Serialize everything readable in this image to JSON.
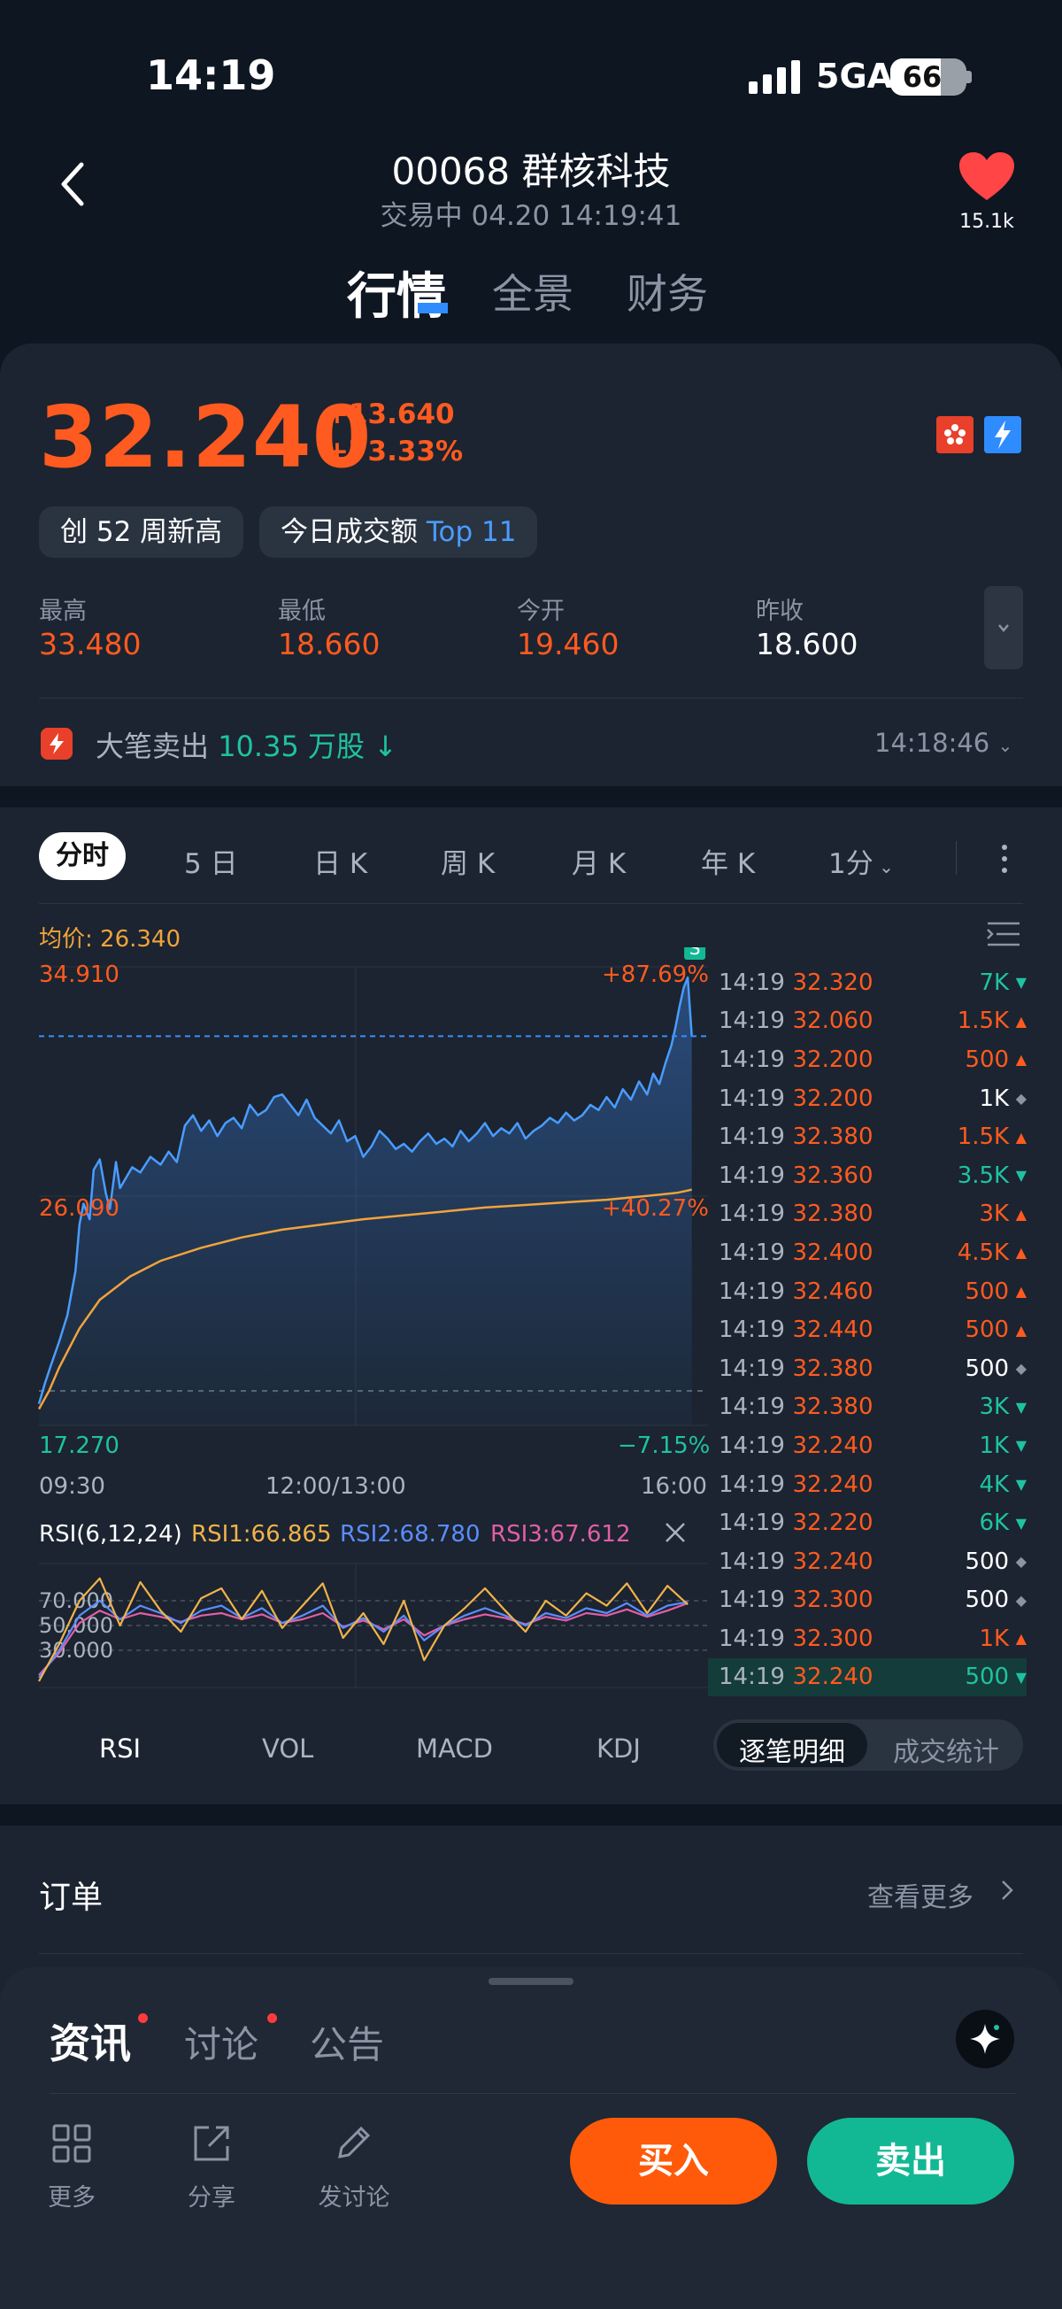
{
  "status_bar": {
    "time": "14:19",
    "network": "5GA",
    "battery": "66",
    "battery_level_pct": 66
  },
  "header": {
    "title": "00068 群核科技",
    "status": "交易中 04.20 14:19:41",
    "fav_count": "15.1k"
  },
  "tabs": [
    {
      "label": "行情"
    },
    {
      "label": "全景"
    },
    {
      "label": "财务"
    }
  ],
  "quote": {
    "price": "32.240",
    "change": "+13.640",
    "change_pct": "+73.33%",
    "tags": {
      "new_high": "创 52 周新高",
      "turnover_prefix": "今日成交额 ",
      "turnover_rank": "Top 11"
    },
    "stats": [
      {
        "label": "最高",
        "value": "33.480"
      },
      {
        "label": "最低",
        "value": "18.660"
      },
      {
        "label": "今开",
        "value": "19.460"
      },
      {
        "label": "昨收",
        "value": "18.600"
      }
    ],
    "big_trade": {
      "prefix": "大笔卖出 ",
      "amount": "10.35 万股 ↓",
      "time": "14:18:46"
    }
  },
  "chart_tabs": [
    "分时",
    "5 日",
    "日 K",
    "周 K",
    "月 K",
    "年 K",
    "1分"
  ],
  "chart": {
    "avg_price_label": "均价: 26.340",
    "signal_marker": "S",
    "y_labels": {
      "high": "34.910",
      "mid": "26.090",
      "low": "17.270"
    },
    "pct_labels": {
      "high": "+87.69%",
      "mid": "+40.27%",
      "low": "−7.15%"
    },
    "x_labels": [
      "09:30",
      "12:00/13:00",
      "16:00"
    ]
  },
  "chart_data": {
    "type": "line",
    "ylim": [
      17.27,
      34.91
    ],
    "x_range": [
      0,
      330
    ],
    "series": [
      {
        "name": "价格",
        "color": "#4a9cff",
        "x": [
          0,
          3,
          6,
          10,
          14,
          18,
          20,
          22,
          25,
          27,
          30,
          33,
          35,
          38,
          40,
          43,
          46,
          50,
          55,
          60,
          64,
          68,
          72,
          76,
          80,
          84,
          88,
          92,
          96,
          100,
          104,
          108,
          112,
          116,
          120,
          124,
          128,
          132,
          136,
          140,
          144,
          148,
          152,
          156,
          160,
          164,
          168,
          172,
          176,
          180,
          184,
          188,
          192,
          196,
          200,
          204,
          208,
          212,
          216,
          220,
          224,
          228,
          232,
          236,
          240,
          244,
          248,
          252,
          256,
          260,
          264,
          268,
          272,
          276,
          280,
          284,
          288,
          292,
          296,
          300,
          303,
          306,
          309,
          312,
          314,
          316,
          318,
          320,
          322
        ],
        "y": [
          18.1,
          18.9,
          19.6,
          20.5,
          21.5,
          23.2,
          25.0,
          25.8,
          25.2,
          27.1,
          27.5,
          26.2,
          25.6,
          27.4,
          26.4,
          26.8,
          27.2,
          27.0,
          27.6,
          27.3,
          27.8,
          27.4,
          28.8,
          29.2,
          28.6,
          29.0,
          28.4,
          28.9,
          29.1,
          28.7,
          29.6,
          29.2,
          29.4,
          29.9,
          30.0,
          29.6,
          29.2,
          29.8,
          29.1,
          28.8,
          28.5,
          29.0,
          28.2,
          28.4,
          27.6,
          28.0,
          28.6,
          28.3,
          27.9,
          28.1,
          27.8,
          28.2,
          28.5,
          28.1,
          28.3,
          28.0,
          28.6,
          28.2,
          28.5,
          28.9,
          28.4,
          28.7,
          28.5,
          28.9,
          28.3,
          28.6,
          28.8,
          29.1,
          28.9,
          29.3,
          29.0,
          29.2,
          29.6,
          29.4,
          29.9,
          29.5,
          30.2,
          29.8,
          30.5,
          30.0,
          30.8,
          30.4,
          31.2,
          31.9,
          32.6,
          33.4,
          34.1,
          34.5,
          32.24
        ]
      },
      {
        "name": "均价",
        "color": "#f2a33c",
        "x": [
          0,
          5,
          10,
          20,
          30,
          45,
          60,
          80,
          100,
          120,
          140,
          160,
          180,
          200,
          220,
          240,
          260,
          280,
          300,
          315,
          322
        ],
        "y": [
          17.9,
          18.6,
          19.5,
          21.0,
          22.1,
          23.0,
          23.6,
          24.1,
          24.5,
          24.8,
          25.0,
          25.2,
          25.35,
          25.5,
          25.65,
          25.75,
          25.85,
          25.95,
          26.1,
          26.22,
          26.34
        ]
      }
    ],
    "reference_line": 18.6
  },
  "ticks": [
    {
      "time": "14:19",
      "price": "32.320",
      "vol": "7K",
      "price_color": "#ff5a1f",
      "vol_color": "#1fc2a0",
      "mark": "▼",
      "mark_color": "#1fc2a0"
    },
    {
      "time": "14:19",
      "price": "32.060",
      "vol": "1.5K",
      "price_color": "#ff5a1f",
      "vol_color": "#ff5a1f",
      "mark": "▲",
      "mark_color": "#ff5a1f"
    },
    {
      "time": "14:19",
      "price": "32.200",
      "vol": "500",
      "price_color": "#ff5a1f",
      "vol_color": "#ff5a1f",
      "mark": "▲",
      "mark_color": "#ff5a1f"
    },
    {
      "time": "14:19",
      "price": "32.200",
      "vol": "1K",
      "price_color": "#ff5a1f",
      "vol_color": "#ffffff",
      "mark": "◆",
      "mark_color": "#8a94a3"
    },
    {
      "time": "14:19",
      "price": "32.380",
      "vol": "1.5K",
      "price_color": "#ff5a1f",
      "vol_color": "#ff5a1f",
      "mark": "▲",
      "mark_color": "#ff5a1f"
    },
    {
      "time": "14:19",
      "price": "32.360",
      "vol": "3.5K",
      "price_color": "#ff5a1f",
      "vol_color": "#1fc2a0",
      "mark": "▼",
      "mark_color": "#1fc2a0"
    },
    {
      "time": "14:19",
      "price": "32.380",
      "vol": "3K",
      "price_color": "#ff5a1f",
      "vol_color": "#ff5a1f",
      "mark": "▲",
      "mark_color": "#ff5a1f"
    },
    {
      "time": "14:19",
      "price": "32.400",
      "vol": "4.5K",
      "price_color": "#ff5a1f",
      "vol_color": "#ff5a1f",
      "mark": "▲",
      "mark_color": "#ff5a1f"
    },
    {
      "time": "14:19",
      "price": "32.460",
      "vol": "500",
      "price_color": "#ff5a1f",
      "vol_color": "#ff5a1f",
      "mark": "▲",
      "mark_color": "#ff5a1f"
    },
    {
      "time": "14:19",
      "price": "32.440",
      "vol": "500",
      "price_color": "#ff5a1f",
      "vol_color": "#ff5a1f",
      "mark": "▲",
      "mark_color": "#ff5a1f"
    },
    {
      "time": "14:19",
      "price": "32.380",
      "vol": "500",
      "price_color": "#ff5a1f",
      "vol_color": "#ffffff",
      "mark": "◆",
      "mark_color": "#8a94a3"
    },
    {
      "time": "14:19",
      "price": "32.380",
      "vol": "3K",
      "price_color": "#ff5a1f",
      "vol_color": "#1fc2a0",
      "mark": "▼",
      "mark_color": "#1fc2a0"
    },
    {
      "time": "14:19",
      "price": "32.240",
      "vol": "1K",
      "price_color": "#ff5a1f",
      "vol_color": "#1fc2a0",
      "mark": "▼",
      "mark_color": "#1fc2a0"
    },
    {
      "time": "14:19",
      "price": "32.240",
      "vol": "4K",
      "price_color": "#ff5a1f",
      "vol_color": "#1fc2a0",
      "mark": "▼",
      "mark_color": "#1fc2a0"
    },
    {
      "time": "14:19",
      "price": "32.220",
      "vol": "6K",
      "price_color": "#ff5a1f",
      "vol_color": "#1fc2a0",
      "mark": "▼",
      "mark_color": "#1fc2a0"
    },
    {
      "time": "14:19",
      "price": "32.240",
      "vol": "500",
      "price_color": "#ff5a1f",
      "vol_color": "#ffffff",
      "mark": "◆",
      "mark_color": "#8a94a3"
    },
    {
      "time": "14:19",
      "price": "32.300",
      "vol": "500",
      "price_color": "#ff5a1f",
      "vol_color": "#ffffff",
      "mark": "◆",
      "mark_color": "#8a94a3"
    },
    {
      "time": "14:19",
      "price": "32.300",
      "vol": "1K",
      "price_color": "#ff5a1f",
      "vol_color": "#ff5a1f",
      "mark": "▲",
      "mark_color": "#ff5a1f"
    },
    {
      "time": "14:19",
      "price": "32.240",
      "vol": "500",
      "price_color": "#ff5a1f",
      "vol_color": "#1fc2a0",
      "mark": "▼",
      "mark_color": "#1fc2a0",
      "highlight": true
    }
  ],
  "rsi": {
    "title": "RSI(6,12,24)",
    "rsi1": "RSI1:66.865",
    "rsi2": "RSI2:68.780",
    "rsi3": "RSI3:67.612",
    "levels": [
      "70.000",
      "50.000",
      "30.000"
    ]
  },
  "rsi_data": {
    "ylim": [
      0,
      100
    ],
    "x": [
      0,
      10,
      20,
      30,
      40,
      50,
      60,
      70,
      80,
      90,
      100,
      110,
      120,
      130,
      140,
      150,
      160,
      170,
      180,
      190,
      200,
      210,
      220,
      230,
      240,
      250,
      260,
      270,
      280,
      290,
      300,
      310,
      320
    ],
    "rsi1": [
      5,
      35,
      70,
      88,
      50,
      85,
      62,
      45,
      72,
      80,
      55,
      78,
      48,
      66,
      84,
      40,
      60,
      35,
      70,
      22,
      50,
      64,
      80,
      62,
      45,
      70,
      58,
      76,
      66,
      84,
      60,
      82,
      67
    ],
    "rsi2": [
      8,
      30,
      58,
      70,
      55,
      66,
      60,
      52,
      62,
      66,
      56,
      64,
      52,
      58,
      66,
      48,
      56,
      45,
      58,
      38,
      50,
      58,
      64,
      58,
      50,
      60,
      56,
      64,
      60,
      68,
      58,
      66,
      69
    ],
    "rsi3": [
      10,
      28,
      52,
      62,
      55,
      60,
      57,
      53,
      58,
      60,
      55,
      59,
      52,
      55,
      60,
      49,
      54,
      47,
      55,
      42,
      50,
      55,
      59,
      56,
      51,
      57,
      54,
      60,
      58,
      63,
      57,
      62,
      68
    ]
  },
  "indicator_tabs": [
    "RSI",
    "VOL",
    "MACD",
    "KDJ"
  ],
  "detail_segment": {
    "detail": "逐笔明细",
    "stats": "成交统计"
  },
  "orders": {
    "title": "订单",
    "more": "查看更多"
  },
  "bottom": {
    "tabs": {
      "news": "资讯",
      "discuss": "讨论",
      "announce": "公告"
    },
    "actions": {
      "more": "更多",
      "share": "分享",
      "post": "发讨论"
    },
    "buy": "买入",
    "sell": "卖出"
  }
}
